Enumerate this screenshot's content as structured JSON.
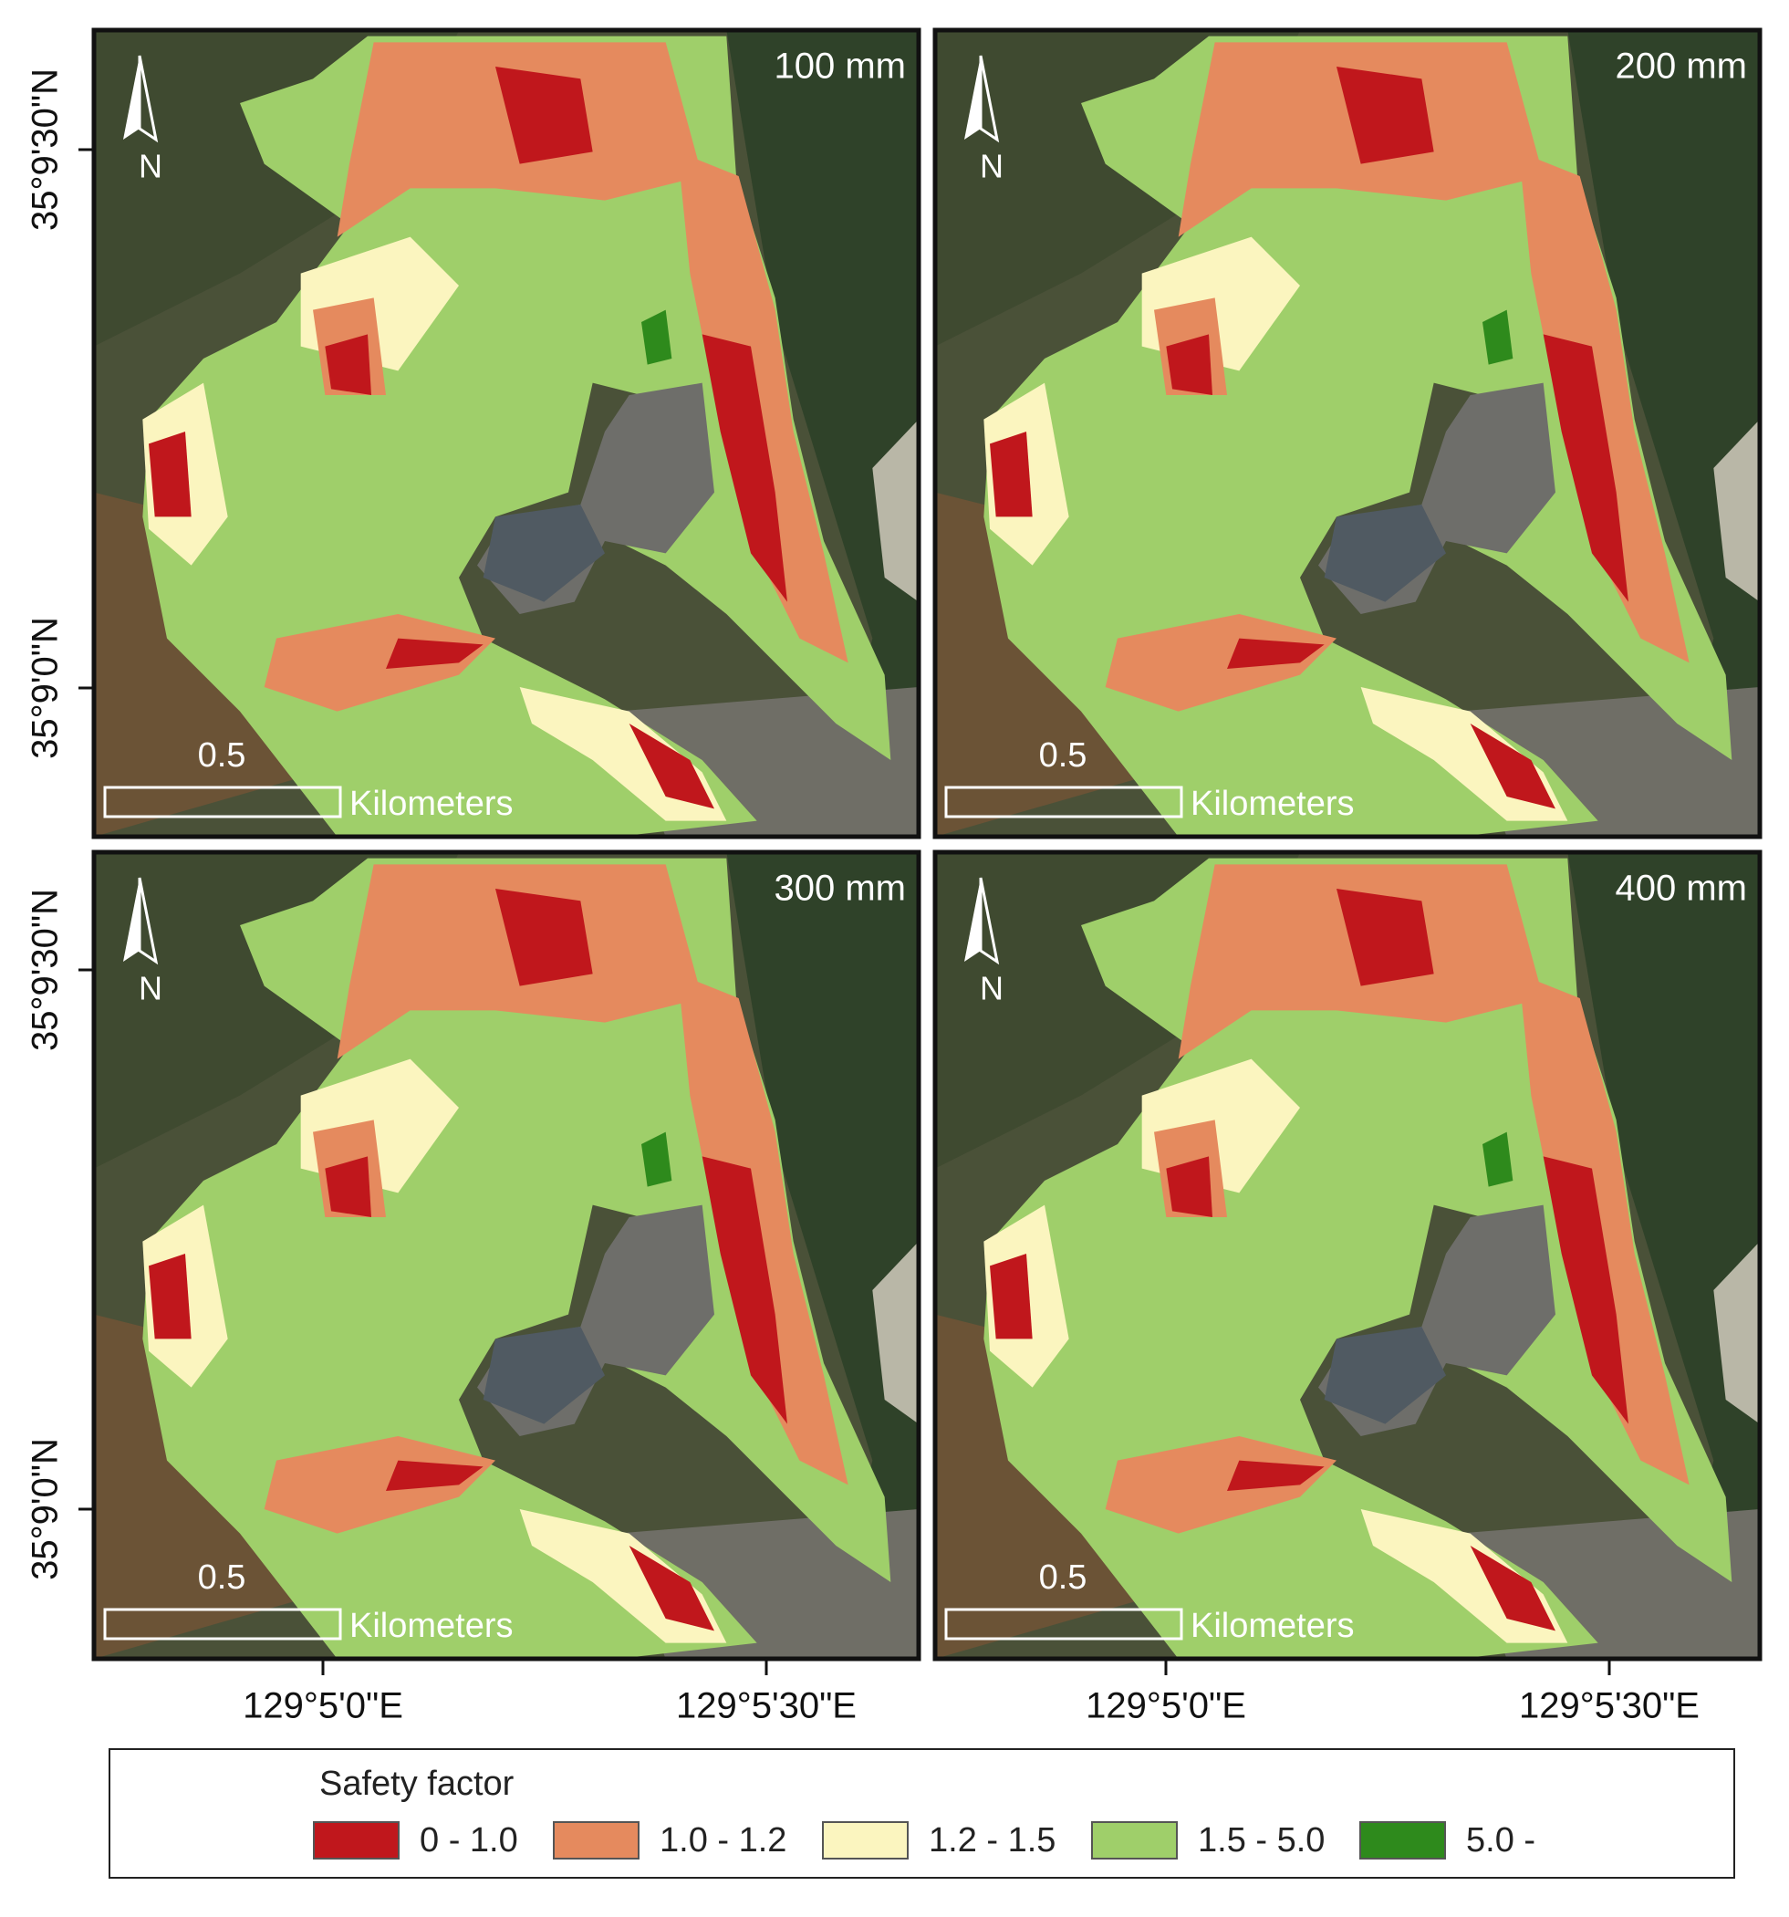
{
  "panels": [
    {
      "label": "100 mm"
    },
    {
      "label": "200 mm"
    },
    {
      "label": "300 mm"
    },
    {
      "label": "400 mm"
    }
  ],
  "north_label": "N",
  "scale_bar": {
    "distance": "0.5",
    "unit": "Kilometers"
  },
  "latitude_labels": [
    "35°9'30\"N",
    "35°9'0\"N"
  ],
  "longitude_labels": [
    "129°5'0\"E",
    "129°5'30\"E"
  ],
  "legend": {
    "title": "Safety factor",
    "items": [
      {
        "label": "0 - 1.0",
        "color": "#c0171c"
      },
      {
        "label": "1.0 - 1.2",
        "color": "#e58a5e"
      },
      {
        "label": "1.2 - 1.5",
        "color": "#fbf5bf"
      },
      {
        "label": "1.5 - 5.0",
        "color": "#9fcf6a"
      },
      {
        "label": "5.0 -",
        "color": "#2e8a1c"
      }
    ]
  }
}
